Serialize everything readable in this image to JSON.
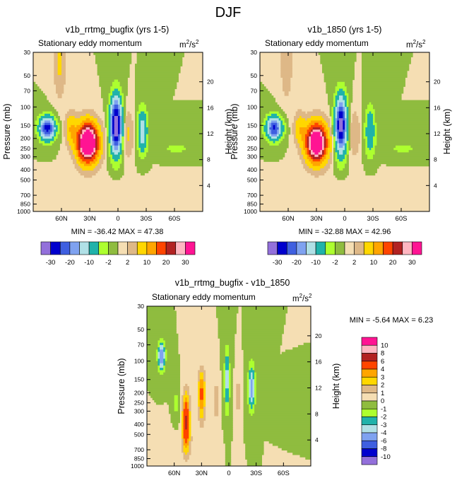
{
  "figure_title": "DJF",
  "chart_data": [
    {
      "type": "heatmap",
      "title": "v1b_rrtmg_bugfix (yrs 1-5)",
      "subtitle": "Stationary eddy momentum",
      "units": "m2/s2",
      "units_base": "m",
      "units_sup1": "2",
      "units_mid": "/s",
      "units_sup2": "2",
      "ylabel": "Pressure (mb)",
      "ylabel_right": "Height (km)",
      "x_ticks": [
        "60N",
        "30N",
        "0",
        "30S",
        "60S"
      ],
      "x_tick_values": [
        60,
        30,
        0,
        -30,
        -60
      ],
      "xlim": [
        90,
        -90
      ],
      "y_ticks": [
        "30",
        "50",
        "70",
        "100",
        "150",
        "200",
        "250",
        "300",
        "400",
        "500",
        "700",
        "850",
        "1000"
      ],
      "y_tick_values": [
        30,
        50,
        70,
        100,
        150,
        200,
        250,
        300,
        400,
        500,
        700,
        850,
        1000
      ],
      "ylim": [
        1000,
        30
      ],
      "height_ticks": [
        "4",
        "8",
        "12",
        "16",
        "20"
      ],
      "height_tick_values": [
        4,
        8,
        12,
        16,
        20
      ],
      "stats_text": "MIN = -36.42   MAX =  47.38",
      "min": -36.42,
      "max": 47.38,
      "features": [
        {
          "lat": 32,
          "p": 220,
          "amp": 47,
          "slat": 11,
          "sh": 2.4
        },
        {
          "lat": 75,
          "p": 160,
          "amp": -28,
          "slat": 8,
          "sh": 4.2
        },
        {
          "lat": 2,
          "p": 150,
          "amp": -36,
          "slat": 6,
          "sh": 1.7
        },
        {
          "lat": -26,
          "p": 170,
          "amp": -14,
          "slat": 5,
          "sh": 2.2
        },
        {
          "lat": 50,
          "p": 160,
          "amp": 9,
          "slat": 6,
          "sh": 3.0
        },
        {
          "lat": -10,
          "p": 180,
          "amp": 6,
          "slat": 6,
          "sh": 2.0
        },
        {
          "lat": 62,
          "p": 35,
          "amp": 6,
          "slat": 6,
          "sh": 1.2
        },
        {
          "lat": -62,
          "p": 250,
          "amp": -2.5,
          "slat": 22,
          "sh": 6
        },
        {
          "lat": 0,
          "p": 700,
          "amp": 1.2,
          "slat": 60,
          "sh": 3
        }
      ]
    },
    {
      "type": "heatmap",
      "title": "v1b_1850 (yrs 1-5)",
      "subtitle": "Stationary eddy momentum",
      "units": "m2/s2",
      "units_base": "m",
      "units_sup1": "2",
      "units_mid": "/s",
      "units_sup2": "2",
      "ylabel": "Pressure (mb)",
      "ylabel_right": "Height (km)",
      "x_ticks": [
        "60N",
        "30N",
        "0",
        "30S",
        "60S"
      ],
      "x_tick_values": [
        60,
        30,
        0,
        -30,
        -60
      ],
      "xlim": [
        90,
        -90
      ],
      "y_ticks": [
        "30",
        "50",
        "70",
        "100",
        "150",
        "200",
        "250",
        "300",
        "400",
        "500",
        "700",
        "850",
        "1000"
      ],
      "y_tick_values": [
        30,
        50,
        70,
        100,
        150,
        200,
        250,
        300,
        400,
        500,
        700,
        850,
        1000
      ],
      "ylim": [
        1000,
        30
      ],
      "height_ticks": [
        "4",
        "8",
        "12",
        "16",
        "20"
      ],
      "height_tick_values": [
        4,
        8,
        12,
        16,
        20
      ],
      "stats_text": "MIN = -32.88   MAX =  42.96",
      "min": -32.88,
      "max": 42.96,
      "features": [
        {
          "lat": 30,
          "p": 220,
          "amp": 43,
          "slat": 11,
          "sh": 2.4
        },
        {
          "lat": 75,
          "p": 160,
          "amp": -26,
          "slat": 8,
          "sh": 4.2
        },
        {
          "lat": 4,
          "p": 150,
          "amp": -33,
          "slat": 6,
          "sh": 1.7
        },
        {
          "lat": -27,
          "p": 170,
          "amp": -10,
          "slat": 5,
          "sh": 2.0
        },
        {
          "lat": 48,
          "p": 160,
          "amp": 8,
          "slat": 6,
          "sh": 3.0
        },
        {
          "lat": -10,
          "p": 180,
          "amp": 5,
          "slat": 6,
          "sh": 2.0
        },
        {
          "lat": 62,
          "p": 35,
          "amp": 5,
          "slat": 6,
          "sh": 1.2
        },
        {
          "lat": -62,
          "p": 250,
          "amp": -2.5,
          "slat": 22,
          "sh": 6
        },
        {
          "lat": 0,
          "p": 700,
          "amp": 1.2,
          "slat": 60,
          "sh": 3
        }
      ]
    },
    {
      "type": "heatmap",
      "title": "v1b_rrtmg_bugfix - v1b_1850",
      "subtitle": "Stationary eddy momentum",
      "units": "m2/s2",
      "units_base": "m",
      "units_sup1": "2",
      "units_mid": "/s",
      "units_sup2": "2",
      "ylabel": "Pressure (mb)",
      "ylabel_right": "Height (km)",
      "x_ticks": [
        "60N",
        "30N",
        "0",
        "30S",
        "60S"
      ],
      "x_tick_values": [
        60,
        30,
        0,
        -30,
        -60
      ],
      "xlim": [
        90,
        -90
      ],
      "y_ticks": [
        "30",
        "50",
        "70",
        "100",
        "150",
        "200",
        "250",
        "300",
        "400",
        "500",
        "700",
        "850",
        "1000"
      ],
      "y_tick_values": [
        30,
        50,
        70,
        100,
        150,
        200,
        250,
        300,
        400,
        500,
        700,
        850,
        1000
      ],
      "ylim": [
        1000,
        30
      ],
      "height_ticks": [
        "4",
        "8",
        "12",
        "16",
        "20"
      ],
      "height_tick_values": [
        4,
        8,
        12,
        16,
        20
      ],
      "stats_text": "MIN =  -5.64   MAX =   6.23",
      "min": -5.64,
      "max": 6.23,
      "features": [
        {
          "lat": 74,
          "p": 90,
          "amp": -5.6,
          "slat": 4,
          "sh": 3.2
        },
        {
          "lat": 47,
          "p": 380,
          "amp": 6.2,
          "slat": 4,
          "sh": 1.6
        },
        {
          "lat": 30,
          "p": 210,
          "amp": 4.5,
          "slat": 4,
          "sh": 1.8
        },
        {
          "lat": 2,
          "p": 150,
          "amp": -3.6,
          "slat": 3,
          "sh": 1.4
        },
        {
          "lat": -25,
          "p": 180,
          "amp": -4.6,
          "slat": 4,
          "sh": 2.0
        },
        {
          "lat": 14,
          "p": 240,
          "amp": 2,
          "slat": 3,
          "sh": 2.2
        },
        {
          "lat": -10,
          "p": 220,
          "amp": 1.6,
          "slat": 3,
          "sh": 2.2
        },
        {
          "lat": 58,
          "p": 250,
          "amp": -1.4,
          "slat": 3,
          "sh": 2.5
        },
        {
          "lat": -60,
          "p": 300,
          "amp": -0.7,
          "slat": 18,
          "sh": 6
        },
        {
          "lat": 40,
          "p": 600,
          "amp": 0.6,
          "slat": 20,
          "sh": 3
        }
      ]
    }
  ],
  "colorbar_top": {
    "orientation": "horizontal",
    "levels": [
      -30,
      -25,
      -20,
      -15,
      -10,
      -5,
      -2,
      0,
      2,
      5,
      10,
      15,
      20,
      25,
      30
    ],
    "labels": [
      "-30",
      "-20",
      "-10",
      "-2",
      "2",
      "10",
      "20",
      "30"
    ],
    "label_positions": [
      0,
      2,
      4,
      6,
      8,
      10,
      12,
      14
    ],
    "colors": [
      "#9370db",
      "#0000cd",
      "#3f5fe0",
      "#7fa2f0",
      "#b0e0e6",
      "#20b2aa",
      "#adff2f",
      "#8fbc3f",
      "#f5deb3",
      "#deb887",
      "#ffd700",
      "#ffa500",
      "#ff4500",
      "#b22222",
      "#ffb6c1",
      "#ff1493"
    ]
  },
  "colorbar_diff": {
    "orientation": "vertical",
    "levels": [
      -10,
      -8,
      -6,
      -4,
      -3,
      -2,
      -1,
      0,
      1,
      2,
      3,
      4,
      6,
      8,
      10
    ],
    "labels": [
      "10",
      "8",
      "6",
      "4",
      "3",
      "2",
      "1",
      "0",
      "-1",
      "-2",
      "-3",
      "-4",
      "-6",
      "-8",
      "-10"
    ],
    "colors": [
      "#9370db",
      "#0000cd",
      "#3f5fe0",
      "#7fa2f0",
      "#b0e0e6",
      "#20b2aa",
      "#adff2f",
      "#8fbc3f",
      "#f5deb3",
      "#deb887",
      "#ffd700",
      "#ffa500",
      "#ff4500",
      "#b22222",
      "#ffb6c1",
      "#ff1493"
    ]
  }
}
